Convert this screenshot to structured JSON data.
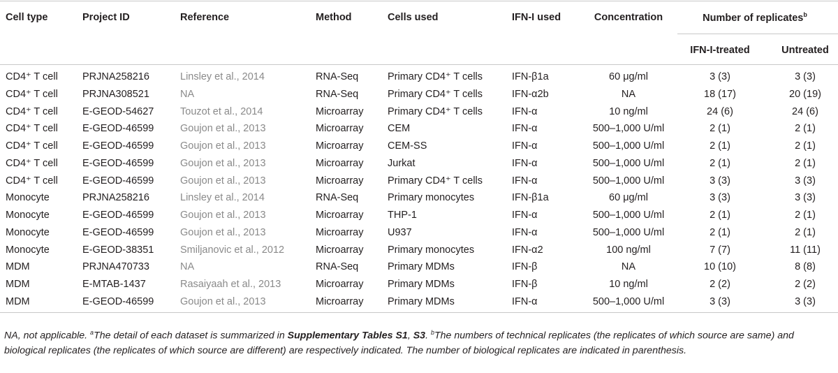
{
  "table": {
    "header": [
      "Cell type",
      "Project ID",
      "Reference",
      "Method",
      "Cells used",
      "IFN-I used",
      "Concentration",
      "Number of replicates",
      "b"
    ],
    "subheader": [
      "IFN-I-treated",
      "Untreated"
    ],
    "rows": [
      [
        "CD4⁺ T cell",
        "PRJNA258216",
        "Linsley et al., 2014",
        "RNA-Seq",
        "Primary CD4⁺ T cells",
        "IFN-β1a",
        "60 μg/ml",
        "3 (3)",
        "3 (3)"
      ],
      [
        "CD4⁺ T cell",
        "PRJNA308521",
        "NA",
        "RNA-Seq",
        "Primary CD4⁺ T cells",
        "IFN-α2b",
        "NA",
        "18 (17)",
        "20 (19)"
      ],
      [
        "CD4⁺ T cell",
        "E-GEOD-54627",
        "Touzot et al., 2014",
        "Microarray",
        "Primary CD4⁺ T cells",
        "IFN-α",
        "10 ng/ml",
        "24 (6)",
        "24 (6)"
      ],
      [
        "CD4⁺ T cell",
        "E-GEOD-46599",
        "Goujon et al., 2013",
        "Microarray",
        "CEM",
        "IFN-α",
        "500–1,000 U/ml",
        "2 (1)",
        "2 (1)"
      ],
      [
        "CD4⁺ T cell",
        "E-GEOD-46599",
        "Goujon et al., 2013",
        "Microarray",
        "CEM-SS",
        "IFN-α",
        "500–1,000 U/ml",
        "2 (1)",
        "2 (1)"
      ],
      [
        "CD4⁺ T cell",
        "E-GEOD-46599",
        "Goujon et al., 2013",
        "Microarray",
        "Jurkat",
        "IFN-α",
        "500–1,000 U/ml",
        "2 (1)",
        "2 (1)"
      ],
      [
        "CD4⁺ T cell",
        "E-GEOD-46599",
        "Goujon et al., 2013",
        "Microarray",
        "Primary CD4⁺ T cells",
        "IFN-α",
        "500–1,000 U/ml",
        "3 (3)",
        "3 (3)"
      ],
      [
        "Monocyte",
        "PRJNA258216",
        "Linsley et al., 2014",
        "RNA-Seq",
        "Primary monocytes",
        "IFN-β1a",
        "60 μg/ml",
        "3 (3)",
        "3 (3)"
      ],
      [
        "Monocyte",
        "E-GEOD-46599",
        "Goujon et al., 2013",
        "Microarray",
        "THP-1",
        "IFN-α",
        "500–1,000 U/ml",
        "2 (1)",
        "2 (1)"
      ],
      [
        "Monocyte",
        "E-GEOD-46599",
        "Goujon et al., 2013",
        "Microarray",
        "U937",
        "IFN-α",
        "500–1,000 U/ml",
        "2 (1)",
        "2 (1)"
      ],
      [
        "Monocyte",
        "E-GEOD-38351",
        "Smiljanovic et al., 2012",
        "Microarray",
        "Primary monocytes",
        "IFN-α2",
        "100 ng/ml",
        "7 (7)",
        "11 (11)"
      ],
      [
        "MDM",
        "PRJNA470733",
        "NA",
        "RNA-Seq",
        "Primary MDMs",
        "IFN-β",
        "NA",
        "10 (10)",
        "8 (8)"
      ],
      [
        "MDM",
        "E-MTAB-1437",
        "Rasaiyaah et al., 2013",
        "Microarray",
        "Primary MDMs",
        "IFN-β",
        "10 ng/ml",
        "2 (2)",
        "2 (2)"
      ],
      [
        "MDM",
        "E-GEOD-46599",
        "Goujon et al., 2013",
        "Microarray",
        "Primary MDMs",
        "IFN-α",
        "500–1,000 U/ml",
        "3 (3)",
        "3 (3)"
      ]
    ]
  },
  "footnote": [
    "NA, not applicable. ",
    "a",
    "The detail of each dataset is summarized in ",
    "Supplementary Tables S1",
    ", ",
    "S3",
    ". ",
    "b",
    "The numbers of technical replicates (the replicates of which source are same) and biological replicates (the replicates of which source are different) are respectively indicated. The number of biological replicates are indicated in parenthesis."
  ]
}
